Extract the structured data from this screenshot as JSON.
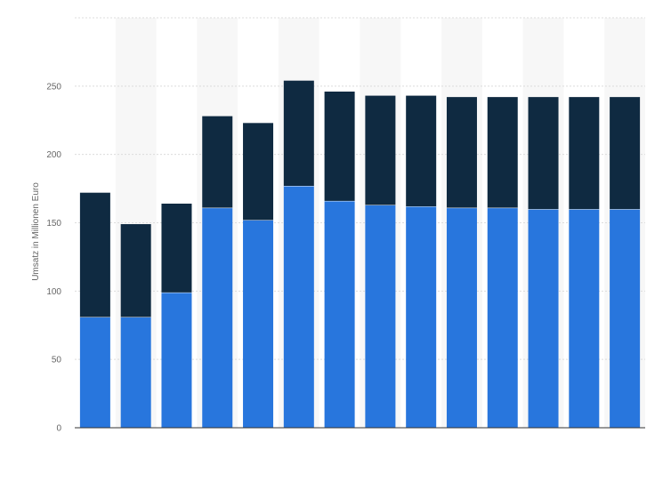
{
  "chart_data": {
    "type": "bar",
    "stacked": true,
    "title": "",
    "xlabel": "",
    "ylabel": "Umsatz in Millionen Euro",
    "ylim": [
      0,
      300
    ],
    "yticks": [
      0,
      50,
      100,
      150,
      200,
      250
    ],
    "grid": true,
    "categories": [
      "",
      "",
      "",
      "",
      "",
      "",
      "",
      "",
      "",
      "",
      "",
      "",
      "",
      ""
    ],
    "series": [
      {
        "color": "#2876dd",
        "values": [
          81,
          81,
          99,
          161,
          152,
          177,
          166,
          163,
          162,
          161,
          161,
          160,
          160,
          160
        ]
      },
      {
        "color": "#0f2a41",
        "values": [
          91,
          68,
          65,
          67,
          71,
          77,
          80,
          80,
          81,
          81,
          81,
          82,
          82,
          82
        ]
      }
    ]
  }
}
